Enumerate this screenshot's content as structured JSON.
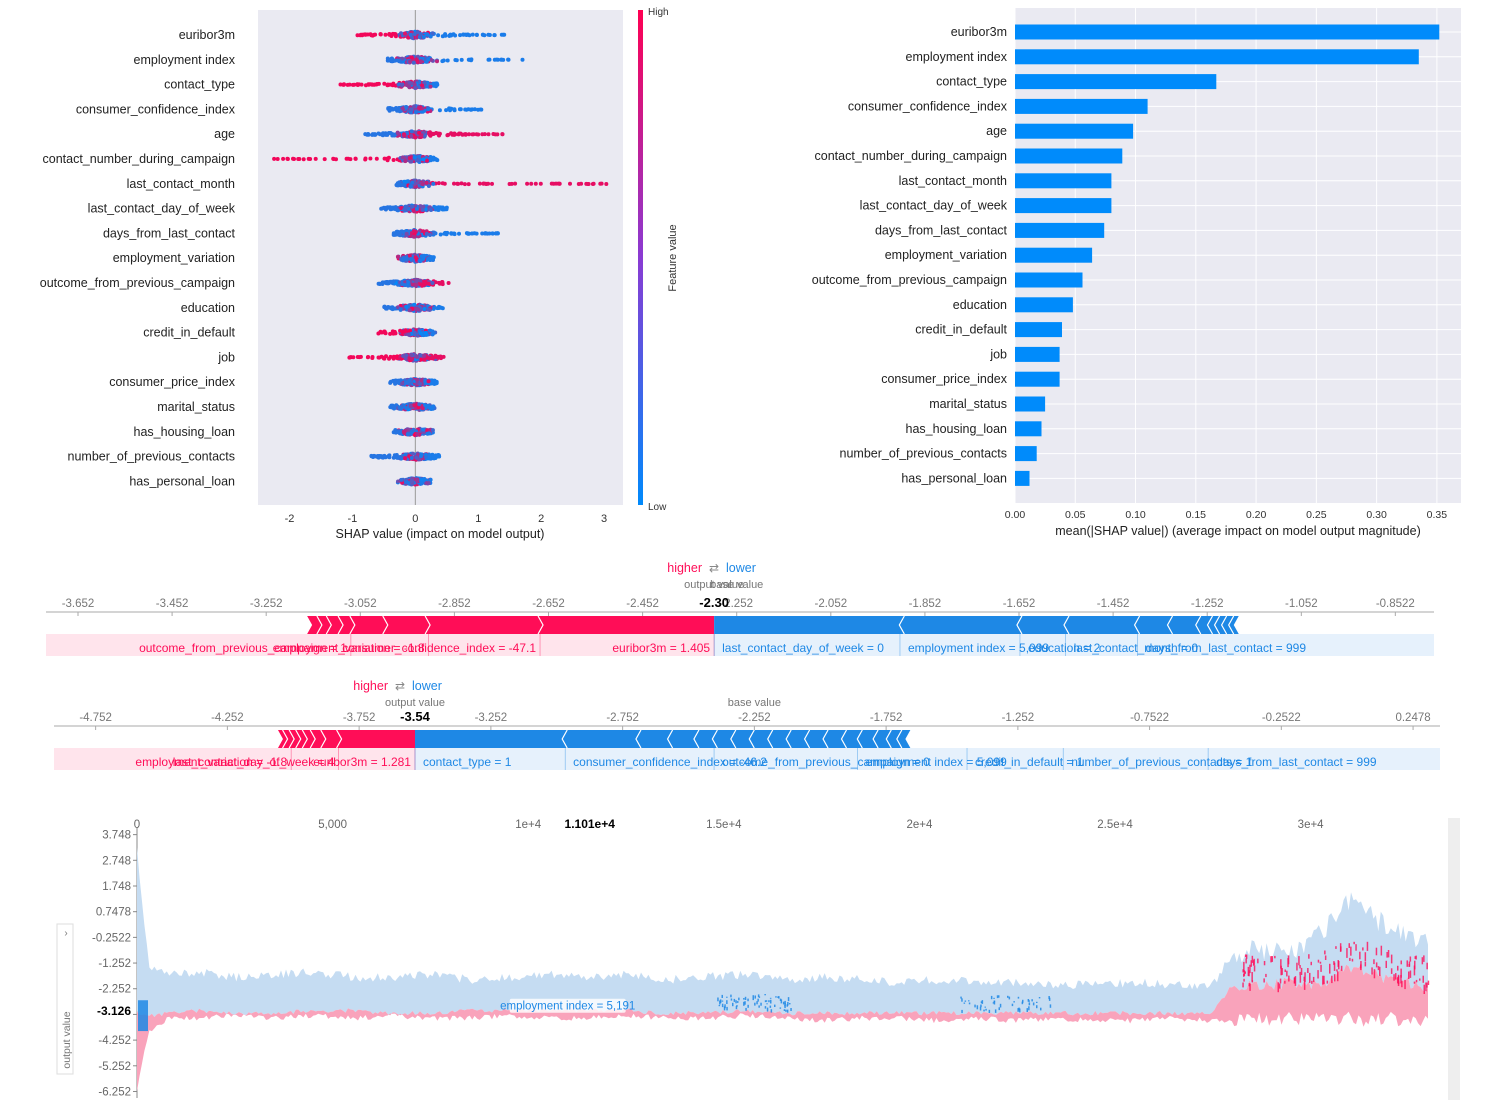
{
  "colors": {
    "positive": "#ff0d57",
    "negative": "#1e88e5",
    "bar": "#008bfb",
    "panel_bg": "#eaeaf2",
    "light_positive": "#ffc3d5",
    "light_negative": "#d1e6fa",
    "stack_negative": "#c5dcf2",
    "stack_positive": "#f9a3bb"
  },
  "beeswarm": {
    "xlabel": "SHAP value (impact on model output)",
    "colorbar": {
      "high": "High",
      "low": "Low",
      "label": "Feature value"
    },
    "xticks": [
      "-2",
      "-1",
      "0",
      "1",
      "2",
      "3"
    ],
    "xtick_values": [
      -2,
      -1,
      0,
      1,
      2,
      3
    ],
    "xlim": [
      -2.5,
      3.3
    ],
    "features": [
      {
        "name": "euribor3m",
        "low": -0.95,
        "high": 1.5
      },
      {
        "name": "employment index",
        "low": -0.45,
        "high": 1.75
      },
      {
        "name": "contact_type",
        "low": -1.2,
        "high": 0.35
      },
      {
        "name": "consumer_confidence_index",
        "low": -0.45,
        "high": 1.1
      },
      {
        "name": "age",
        "low": -0.8,
        "high": 1.4
      },
      {
        "name": "contact_number_during_campaign",
        "low": -2.35,
        "high": 0.35
      },
      {
        "name": "last_contact_month",
        "low": -0.3,
        "high": 3.1
      },
      {
        "name": "last_contact_day_of_week",
        "low": -0.55,
        "high": 0.55
      },
      {
        "name": "days_from_last_contact",
        "low": -0.35,
        "high": 1.35
      },
      {
        "name": "employment_variation",
        "low": -0.2,
        "high": 0.3
      },
      {
        "name": "outcome_from_previous_campaign",
        "low": -0.6,
        "high": 0.55
      },
      {
        "name": "education",
        "low": -0.5,
        "high": 0.45
      },
      {
        "name": "credit_in_default",
        "low": -0.6,
        "high": 0.3
      },
      {
        "name": "job",
        "low": -1.05,
        "high": 0.45
      },
      {
        "name": "consumer_price_index",
        "low": -0.4,
        "high": 0.35
      },
      {
        "name": "marital_status",
        "low": -0.4,
        "high": 0.3
      },
      {
        "name": "has_housing_loan",
        "low": -0.35,
        "high": 0.3
      },
      {
        "name": "number_of_previous_contacts",
        "low": -0.7,
        "high": 0.4
      },
      {
        "name": "has_personal_loan",
        "low": -0.2,
        "high": 0.25
      }
    ]
  },
  "chart_data": [
    {
      "type": "bar",
      "orientation": "horizontal",
      "xlabel": "mean(|SHAP value|) (average impact on model output magnitude)",
      "xlim": [
        0,
        0.37
      ],
      "xticks": [
        "0.00",
        "0.05",
        "0.10",
        "0.15",
        "0.20",
        "0.25",
        "0.30",
        "0.35"
      ],
      "xtick_values": [
        0,
        0.05,
        0.1,
        0.15,
        0.2,
        0.25,
        0.3,
        0.35
      ],
      "grid": true,
      "categories": [
        "euribor3m",
        "employment index",
        "contact_type",
        "consumer_confidence_index",
        "age",
        "contact_number_during_campaign",
        "last_contact_month",
        "last_contact_day_of_week",
        "days_from_last_contact",
        "employment_variation",
        "outcome_from_previous_campaign",
        "education",
        "credit_in_default",
        "job",
        "consumer_price_index",
        "marital_status",
        "has_housing_loan",
        "number_of_previous_contacts",
        "has_personal_loan"
      ],
      "values": [
        0.352,
        0.335,
        0.167,
        0.11,
        0.098,
        0.089,
        0.08,
        0.08,
        0.074,
        0.064,
        0.056,
        0.048,
        0.039,
        0.037,
        0.037,
        0.025,
        0.022,
        0.018,
        0.012
      ]
    },
    {
      "type": "force",
      "higher_label": "higher",
      "lower_label": "lower",
      "output_label": "output value",
      "base_label": "base value",
      "output_value": -2.3,
      "output_text": "-2.30",
      "base_value": -2.252,
      "ticks": [
        "-3.652",
        "-3.452",
        "-3.252",
        "-3.052",
        "-2.852",
        "-2.652",
        "-2.452",
        "-2.252",
        "-2.052",
        "-1.852",
        "-1.652",
        "-1.452",
        "-1.252",
        "-1.052",
        "-0.8522"
      ],
      "tick_values": [
        -3.652,
        -3.452,
        -3.252,
        -3.052,
        -2.852,
        -2.652,
        -2.452,
        -2.252,
        -2.052,
        -1.852,
        -1.652,
        -1.452,
        -1.252,
        -1.052,
        -0.8522
      ],
      "range": [
        -3.72,
        -0.77
      ],
      "red_start": -3.165,
      "blue_end": -1.185,
      "red_segments": [
        -3.165,
        -3.14,
        -3.12,
        -3.095,
        -3.07,
        -3.0,
        -2.91,
        -2.67,
        -2.3
      ],
      "blue_segments": [
        -2.3,
        -1.9,
        -1.65,
        -1.55,
        -1.4,
        -1.33,
        -1.27,
        -1.245,
        -1.23,
        -1.215,
        -1.2,
        -1.185
      ],
      "labels_pos": [
        {
          "text": "outcome_from_previous_campaign = 1",
          "edge": -3.072
        },
        {
          "text": "employment_variation = -1.8",
          "edge": -2.907
        },
        {
          "text": "consumer_confidence_index = -47.1",
          "edge": -2.67
        },
        {
          "text": "euribor3m = 1.405",
          "edge": -2.3
        }
      ],
      "labels_neg": [
        {
          "text": "last_contact_day_of_week = 0",
          "edge": -2.3
        },
        {
          "text": "employment index = 5,099",
          "edge": -1.905
        },
        {
          "text": "education = 2",
          "edge": -1.65
        },
        {
          "text": "last_contact_month = 0",
          "edge": -1.553
        },
        {
          "text": "days_from_last_contact = 999",
          "edge": -1.4
        }
      ]
    },
    {
      "type": "force",
      "higher_label": "higher",
      "lower_label": "lower",
      "output_label": "output value",
      "base_label": "base value",
      "output_value": -3.54,
      "output_text": "-3.54",
      "base_value": -2.252,
      "ticks": [
        "-4.752",
        "-4.252",
        "-3.752",
        "-3.252",
        "-2.752",
        "-2.252",
        "-1.752",
        "-1.252",
        "-0.7522",
        "-0.2522",
        "0.2478"
      ],
      "tick_values": [
        -4.752,
        -4.252,
        -3.752,
        -3.252,
        -2.752,
        -2.252,
        -1.752,
        -1.252,
        -0.7522,
        -0.2522,
        0.2478
      ],
      "range": [
        -4.91,
        0.35
      ],
      "red_start": -4.06,
      "blue_end": -1.66,
      "red_segments": [
        -4.06,
        -4.035,
        -4.01,
        -3.985,
        -3.96,
        -3.93,
        -3.89,
        -3.83,
        -3.54
      ],
      "blue_segments": [
        -3.54,
        -2.97,
        -2.69,
        -2.57,
        -2.47,
        -2.4,
        -2.33,
        -2.26,
        -2.19,
        -2.12,
        -2.05,
        -1.98,
        -1.91,
        -1.85,
        -1.79,
        -1.74,
        -1.7,
        -1.66
      ],
      "labels_pos": [
        {
          "text": "employment_variation = -1.8",
          "edge": -4.01
        },
        {
          "text": "last_contact_day_of_week = 4",
          "edge": -3.83
        },
        {
          "text": "euribor3m = 1.281",
          "edge": -3.54
        }
      ],
      "labels_neg": [
        {
          "text": "contact_type = 1",
          "edge": -3.54
        },
        {
          "text": "consumer_confidence_index = -46.2",
          "edge": -2.97
        },
        {
          "text": "outcome_from_previous_campaign = 0",
          "edge": -2.405
        },
        {
          "text": "employment index = 5,099",
          "edge": -1.86
        },
        {
          "text": "credit_in_default = 1",
          "edge": -1.445
        },
        {
          "text": "number_of_previous_contacts = 1",
          "edge": -1.08
        },
        {
          "text": "days_from_last_contact = 999",
          "edge": -0.53
        }
      ]
    },
    {
      "type": "area",
      "ylabel": "output value",
      "xticks": [
        "0",
        "5,000",
        "1e+4",
        "1.5e+4",
        "2e+4",
        "2.5e+4",
        "3e+4"
      ],
      "xtick_values": [
        0,
        5000,
        10000,
        15000,
        20000,
        25000,
        30000
      ],
      "hover_x_text": "1.101e+4",
      "hover_x": 11010,
      "xlim": [
        0,
        33000
      ],
      "yticks": [
        "3.748",
        "2.748",
        "1.748",
        "0.7478",
        "-0.2522",
        "-1.252",
        "-2.252",
        "-3.252",
        "-4.252",
        "-5.252",
        "-6.252"
      ],
      "ytick_values": [
        3.748,
        2.748,
        1.748,
        0.7478,
        -0.2522,
        -1.252,
        -2.252,
        -3.252,
        -4.252,
        -5.252,
        -6.252
      ],
      "ylim": [
        -6.35,
        3.85
      ],
      "hover_y_text": "-3.126",
      "hover_y": -3.126,
      "hover_label": "employment index = 5,191",
      "hover_label_x": 11010,
      "hover_label_y": -3.03,
      "x": [
        0,
        300,
        800,
        1500,
        2500,
        3500,
        4500,
        5500,
        6500,
        7500,
        8500,
        9500,
        10500,
        11500,
        12500,
        13500,
        14500,
        15500,
        16500,
        17500,
        18500,
        19500,
        20500,
        21500,
        22500,
        23500,
        24500,
        25500,
        26500,
        27500,
        28000,
        28500,
        29000,
        29500,
        30000,
        30500,
        31000,
        31500,
        32000,
        32500,
        33000
      ],
      "upper": [
        3.2,
        -1.4,
        -1.7,
        -1.6,
        -1.8,
        -1.7,
        -1.6,
        -1.8,
        -1.8,
        -1.7,
        -1.9,
        -1.8,
        -1.7,
        -1.8,
        -1.7,
        -1.9,
        -1.8,
        -1.7,
        -1.9,
        -1.8,
        -1.9,
        -2.0,
        -1.9,
        -2.0,
        -2.0,
        -2.1,
        -2.1,
        -2.0,
        -2.1,
        -2.1,
        -0.9,
        -0.8,
        -0.7,
        -0.8,
        -0.4,
        0.3,
        1.2,
        0.6,
        0.2,
        -0.1,
        -0.5
      ],
      "middle": [
        -3.2,
        -3.3,
        -3.2,
        -3.1,
        -3.2,
        -3.2,
        -3.1,
        -3.1,
        -3.2,
        -3.2,
        -3.1,
        -3.1,
        -3.1,
        -3.1,
        -3.1,
        -3.2,
        -3.2,
        -3.1,
        -3.2,
        -3.2,
        -3.2,
        -3.2,
        -3.2,
        -3.2,
        -3.2,
        -3.2,
        -3.2,
        -3.2,
        -3.2,
        -3.2,
        -2.1,
        -2.1,
        -2.1,
        -2.0,
        -2.1,
        -1.9,
        -1.4,
        -1.6,
        -1.9,
        -2.0,
        -2.2
      ],
      "lower": [
        -6.2,
        -3.9,
        -3.4,
        -3.4,
        -3.3,
        -3.4,
        -3.3,
        -3.4,
        -3.3,
        -3.4,
        -3.4,
        -3.3,
        -3.4,
        -3.4,
        -3.3,
        -3.4,
        -3.4,
        -3.3,
        -3.4,
        -3.5,
        -3.4,
        -3.4,
        -3.5,
        -3.4,
        -3.5,
        -3.4,
        -3.5,
        -3.5,
        -3.4,
        -3.5,
        -3.5,
        -3.4,
        -3.5,
        -3.4,
        -3.4,
        -3.5,
        -3.4,
        -3.5,
        -3.4,
        -3.5,
        -3.4
      ]
    }
  ]
}
